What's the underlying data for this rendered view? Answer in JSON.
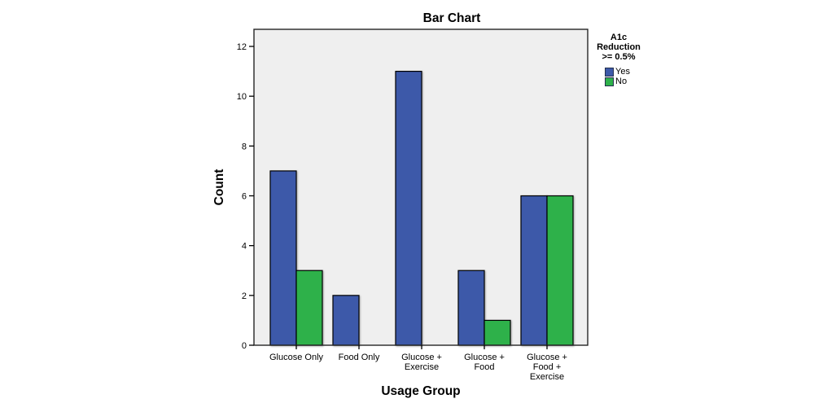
{
  "chart_data": {
    "type": "bar",
    "title": "Bar Chart",
    "xlabel": "Usage Group",
    "ylabel": "Count",
    "categories": [
      "Glucose Only",
      "Food Only",
      "Glucose + Exercise",
      "Glucose + Food",
      "Glucose + Food + Exercise"
    ],
    "category_label_lines": [
      [
        "Glucose Only"
      ],
      [
        "Food Only"
      ],
      [
        "Glucose +",
        "Exercise"
      ],
      [
        "Glucose +",
        "Food"
      ],
      [
        "Glucose +",
        "Food +",
        "Exercise"
      ]
    ],
    "series": [
      {
        "name": "Yes",
        "color": "#3D59A9",
        "border": "#000000",
        "values": [
          7,
          2,
          11,
          3,
          6
        ]
      },
      {
        "name": "No",
        "color": "#2EB14A",
        "border": "#000000",
        "values": [
          3,
          0,
          0,
          1,
          6
        ]
      }
    ],
    "legend": {
      "title_lines": [
        "A1c",
        "Reduction",
        ">= 0.5%"
      ],
      "position": "right"
    },
    "ylim": [
      0,
      12.7
    ],
    "yticks": [
      0,
      2,
      4,
      6,
      8,
      10,
      12
    ],
    "grid": false,
    "colors": {
      "plot_background": "#EFEFEF",
      "plot_border": "#262626",
      "tick": "#000000",
      "page_background": "#FFFFFF"
    }
  }
}
